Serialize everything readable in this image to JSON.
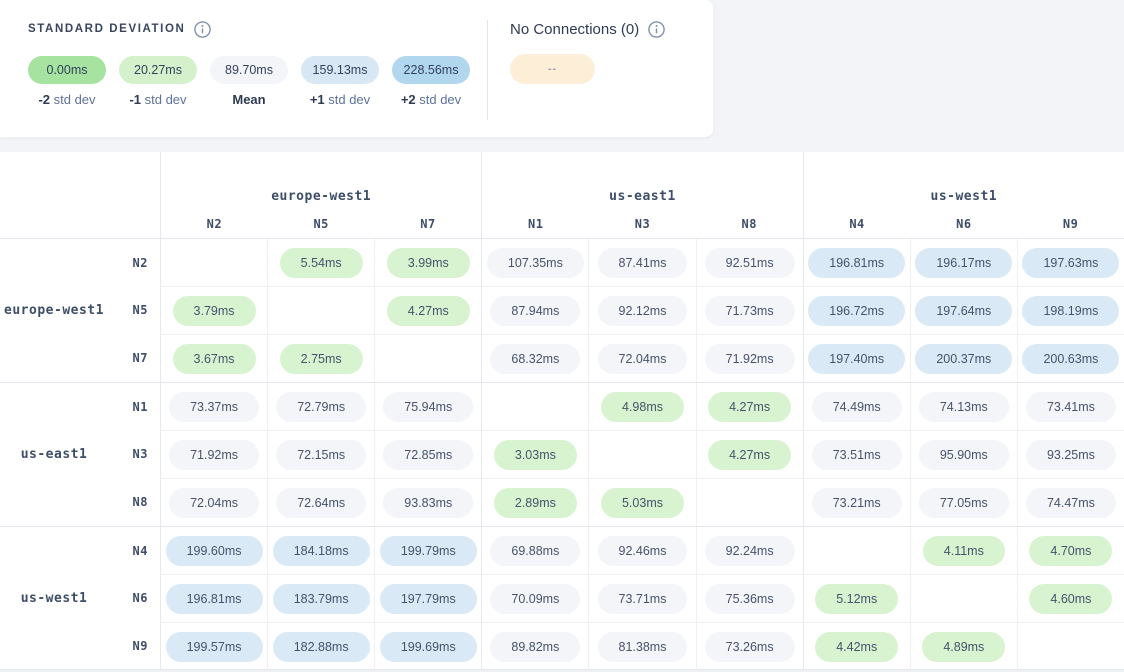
{
  "colors": {
    "green": "#d8f3d0",
    "gray": "#f3f5f9",
    "blue": "#d9e9f6",
    "none": "transparent",
    "no_connection_pill": "#fdeed8"
  },
  "legend": {
    "title": "STANDARD DEVIATION",
    "items": [
      {
        "value": "0.00ms",
        "label_bold": "-2",
        "label_rest": "std dev",
        "color": "#a6e3a0"
      },
      {
        "value": "20.27ms",
        "label_bold": "-1",
        "label_rest": "std dev",
        "color": "#d4f1cc"
      },
      {
        "value": "89.70ms",
        "label_bold": "Mean",
        "label_rest": "",
        "color": "#f3f5f9"
      },
      {
        "value": "159.13ms",
        "label_bold": "+1",
        "label_rest": "std dev",
        "color": "#d8e7f4"
      },
      {
        "value": "228.56ms",
        "label_bold": "+2",
        "label_rest": "std dev",
        "color": "#b1d7ef"
      }
    ]
  },
  "no_connections": {
    "title": "No Connections (0)",
    "pill_text": "--"
  },
  "matrix": {
    "col_groups": [
      {
        "region": "europe-west1",
        "nodes": [
          "N2",
          "N5",
          "N7"
        ]
      },
      {
        "region": "us-east1",
        "nodes": [
          "N1",
          "N3",
          "N8"
        ]
      },
      {
        "region": "us-west1",
        "nodes": [
          "N4",
          "N6",
          "N9"
        ]
      }
    ],
    "row_groups": [
      {
        "region": "europe-west1",
        "rows": [
          {
            "node": "N2",
            "cells": [
              {
                "v": "",
                "c": "none"
              },
              {
                "v": "5.54ms",
                "c": "green"
              },
              {
                "v": "3.99ms",
                "c": "green"
              },
              {
                "v": "107.35ms",
                "c": "gray"
              },
              {
                "v": "87.41ms",
                "c": "gray"
              },
              {
                "v": "92.51ms",
                "c": "gray"
              },
              {
                "v": "196.81ms",
                "c": "blue"
              },
              {
                "v": "196.17ms",
                "c": "blue"
              },
              {
                "v": "197.63ms",
                "c": "blue"
              }
            ]
          },
          {
            "node": "N5",
            "cells": [
              {
                "v": "3.79ms",
                "c": "green"
              },
              {
                "v": "",
                "c": "none"
              },
              {
                "v": "4.27ms",
                "c": "green"
              },
              {
                "v": "87.94ms",
                "c": "gray"
              },
              {
                "v": "92.12ms",
                "c": "gray"
              },
              {
                "v": "71.73ms",
                "c": "gray"
              },
              {
                "v": "196.72ms",
                "c": "blue"
              },
              {
                "v": "197.64ms",
                "c": "blue"
              },
              {
                "v": "198.19ms",
                "c": "blue"
              }
            ]
          },
          {
            "node": "N7",
            "cells": [
              {
                "v": "3.67ms",
                "c": "green"
              },
              {
                "v": "2.75ms",
                "c": "green"
              },
              {
                "v": "",
                "c": "none"
              },
              {
                "v": "68.32ms",
                "c": "gray"
              },
              {
                "v": "72.04ms",
                "c": "gray"
              },
              {
                "v": "71.92ms",
                "c": "gray"
              },
              {
                "v": "197.40ms",
                "c": "blue"
              },
              {
                "v": "200.37ms",
                "c": "blue"
              },
              {
                "v": "200.63ms",
                "c": "blue"
              }
            ]
          }
        ]
      },
      {
        "region": "us-east1",
        "rows": [
          {
            "node": "N1",
            "cells": [
              {
                "v": "73.37ms",
                "c": "gray"
              },
              {
                "v": "72.79ms",
                "c": "gray"
              },
              {
                "v": "75.94ms",
                "c": "gray"
              },
              {
                "v": "",
                "c": "none"
              },
              {
                "v": "4.98ms",
                "c": "green"
              },
              {
                "v": "4.27ms",
                "c": "green"
              },
              {
                "v": "74.49ms",
                "c": "gray"
              },
              {
                "v": "74.13ms",
                "c": "gray"
              },
              {
                "v": "73.41ms",
                "c": "gray"
              }
            ]
          },
          {
            "node": "N3",
            "cells": [
              {
                "v": "71.92ms",
                "c": "gray"
              },
              {
                "v": "72.15ms",
                "c": "gray"
              },
              {
                "v": "72.85ms",
                "c": "gray"
              },
              {
                "v": "3.03ms",
                "c": "green"
              },
              {
                "v": "",
                "c": "none"
              },
              {
                "v": "4.27ms",
                "c": "green"
              },
              {
                "v": "73.51ms",
                "c": "gray"
              },
              {
                "v": "95.90ms",
                "c": "gray"
              },
              {
                "v": "93.25ms",
                "c": "gray"
              }
            ]
          },
          {
            "node": "N8",
            "cells": [
              {
                "v": "72.04ms",
                "c": "gray"
              },
              {
                "v": "72.64ms",
                "c": "gray"
              },
              {
                "v": "93.83ms",
                "c": "gray"
              },
              {
                "v": "2.89ms",
                "c": "green"
              },
              {
                "v": "5.03ms",
                "c": "green"
              },
              {
                "v": "",
                "c": "none"
              },
              {
                "v": "73.21ms",
                "c": "gray"
              },
              {
                "v": "77.05ms",
                "c": "gray"
              },
              {
                "v": "74.47ms",
                "c": "gray"
              }
            ]
          }
        ]
      },
      {
        "region": "us-west1",
        "rows": [
          {
            "node": "N4",
            "cells": [
              {
                "v": "199.60ms",
                "c": "blue"
              },
              {
                "v": "184.18ms",
                "c": "blue"
              },
              {
                "v": "199.79ms",
                "c": "blue"
              },
              {
                "v": "69.88ms",
                "c": "gray"
              },
              {
                "v": "92.46ms",
                "c": "gray"
              },
              {
                "v": "92.24ms",
                "c": "gray"
              },
              {
                "v": "",
                "c": "none"
              },
              {
                "v": "4.11ms",
                "c": "green"
              },
              {
                "v": "4.70ms",
                "c": "green"
              }
            ]
          },
          {
            "node": "N6",
            "cells": [
              {
                "v": "196.81ms",
                "c": "blue"
              },
              {
                "v": "183.79ms",
                "c": "blue"
              },
              {
                "v": "197.79ms",
                "c": "blue"
              },
              {
                "v": "70.09ms",
                "c": "gray"
              },
              {
                "v": "73.71ms",
                "c": "gray"
              },
              {
                "v": "75.36ms",
                "c": "gray"
              },
              {
                "v": "5.12ms",
                "c": "green"
              },
              {
                "v": "",
                "c": "none"
              },
              {
                "v": "4.60ms",
                "c": "green"
              }
            ]
          },
          {
            "node": "N9",
            "cells": [
              {
                "v": "199.57ms",
                "c": "blue"
              },
              {
                "v": "182.88ms",
                "c": "blue"
              },
              {
                "v": "199.69ms",
                "c": "blue"
              },
              {
                "v": "89.82ms",
                "c": "gray"
              },
              {
                "v": "81.38ms",
                "c": "gray"
              },
              {
                "v": "73.26ms",
                "c": "gray"
              },
              {
                "v": "4.42ms",
                "c": "green"
              },
              {
                "v": "4.89ms",
                "c": "green"
              },
              {
                "v": "",
                "c": "none"
              }
            ]
          }
        ]
      }
    ]
  }
}
